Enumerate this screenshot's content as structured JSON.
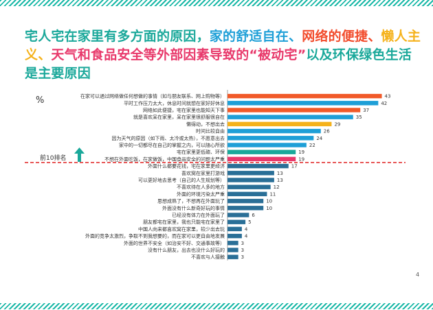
{
  "title_segments": [
    {
      "text": "宅人宅在家里有多方面的原因，",
      "color": "#1aa89a"
    },
    {
      "text": "家的舒适自在、",
      "color": "#1e9fd7"
    },
    {
      "text": "网络的便捷、",
      "color": "#f24c2c"
    },
    {
      "text": "懒人主义、",
      "color": "#f5b21b"
    },
    {
      "text": "天气和食品安全等外部因素导致的“被动宅”",
      "color": "#e8396b"
    },
    {
      "text": "以及环保绿色生活是主要原因",
      "color": "#1aa89a"
    }
  ],
  "page_number": "4",
  "chart_data": {
    "type": "bar",
    "orientation": "horizontal",
    "unit_label": "%",
    "top_marker_label": "前10排名",
    "categories": [
      "在家可以通过网络做任何想做的事情（如与朋友联系、网上购物等）",
      "平时工作压力太大，休息时间就想在家好好休息",
      "网络如此便捷，宅在家里也能知天下事",
      "就是喜欢呆在家里，呆在家里很舒服很自在",
      "懒得动，不想出去",
      "时间比较自由",
      "因为天气的原因（如下雨、太冷或太热），不愿意出去",
      "家中的一切都尽在自己的掌握之内，可以随心所欲",
      "宅在家里更低碳、环保",
      "不想在外面吃饭，在家做饭，中国食品安全的问题太严重",
      "外面什么都要花钱，宅在家里更经济",
      "喜欢窝在家里打游戏",
      "可以更好地去思考（自己的人生规划等）",
      "不喜欢待在人多的地方",
      "外面的环境污染太严重",
      "思想成熟了，不想再在外面玩了",
      "外面没有什么新奇好玩的事情",
      "已经没有体力在外面玩了",
      "朋友都宅在家里，我也只能宅在家里了",
      "中国人向来都喜欢窝在家里，较少出去玩",
      "外面的竞争太激烈，争取不到我想要的，而在家可以更自由地发展",
      "外面的世界不安全（如治安不好、交通事故等）",
      "没有什么朋友，出去也没什么好玩的",
      "不喜欢与人接触"
    ],
    "values": [
      43,
      42,
      37,
      35,
      29,
      26,
      24,
      22,
      19,
      19,
      17,
      13,
      13,
      12,
      11,
      10,
      10,
      6,
      5,
      4,
      4,
      3,
      3,
      3
    ],
    "bar_colors": [
      "#f15a29",
      "#1e9fd7",
      "#f15a29",
      "#1e9fd7",
      "#f5b21b",
      "#1e9fd7",
      "#1e9fd7",
      "#1e9fd7",
      "#1aa89a",
      "#e8396b",
      "#2a6f97",
      "#2a6f97",
      "#2a6f97",
      "#2a6f97",
      "#2a6f97",
      "#2a6f97",
      "#2a6f97",
      "#2a6f97",
      "#2a6f97",
      "#2a6f97",
      "#2a6f97",
      "#2a6f97",
      "#2a6f97",
      "#2a6f97"
    ],
    "xlim": [
      0,
      45
    ],
    "grid": false,
    "top_n_divider": 10,
    "colors": {
      "divider": "#e02020",
      "arrow": "#1aa89a",
      "axis": "#888888",
      "label_text": "#333333",
      "value_text": "#333333"
    }
  }
}
